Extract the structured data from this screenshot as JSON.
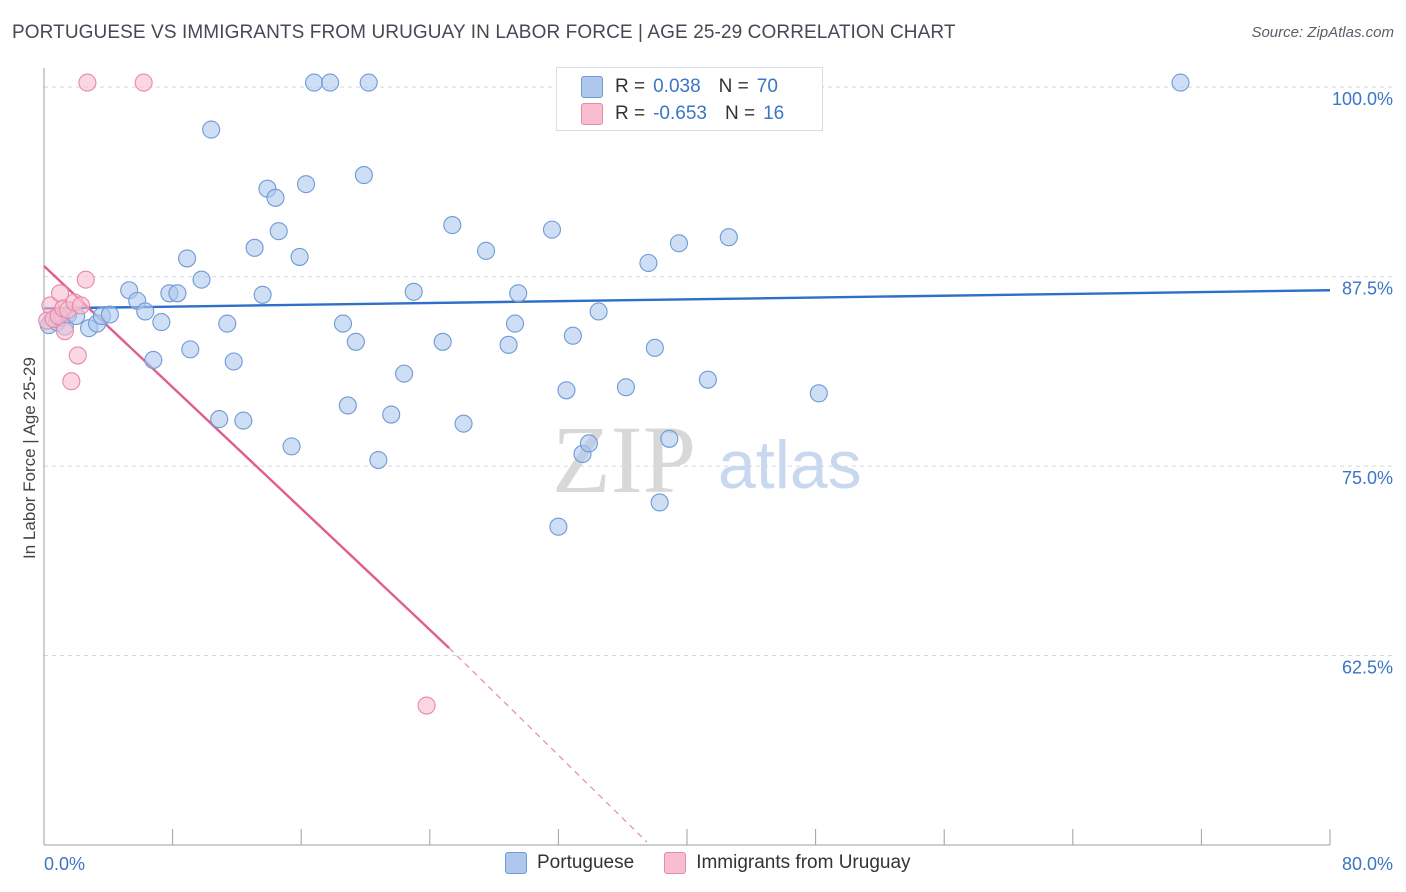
{
  "title": "PORTUGUESE VS IMMIGRANTS FROM URUGUAY IN LABOR FORCE | AGE 25-29 CORRELATION CHART",
  "source": "Source: ZipAtlas.com",
  "watermark": {
    "zip": "ZIP",
    "atlas": "atlas"
  },
  "legend": {
    "rows": [
      {
        "r_label": "R =",
        "r_value": "0.038",
        "n_label": "N =",
        "n_value": "70",
        "color": "#adc8ec",
        "border": "#6f9ad6"
      },
      {
        "r_label": "R =",
        "r_value": "-0.653",
        "n_label": "N =",
        "n_value": "16",
        "color": "#f7bdd0",
        "border": "#e88aa8"
      }
    ]
  },
  "bottom_legend": [
    "Portuguese",
    "Immigrants from Uruguay"
  ],
  "chart_data": {
    "type": "scatter",
    "title": "PORTUGUESE VS IMMIGRANTS FROM URUGUAY IN LABOR FORCE | AGE 25-29 CORRELATION CHART",
    "xlabel": "",
    "ylabel": "In Labor Force | Age 25-29",
    "xlim": [
      0,
      80
    ],
    "ylim": [
      50,
      101
    ],
    "x_tick_labels": [
      "0.0%",
      "80.0%"
    ],
    "y_ticks": [
      62.5,
      75.0,
      87.5,
      100.0
    ],
    "y_tick_labels": [
      "62.5%",
      "75.0%",
      "87.5%",
      "100.0%"
    ],
    "grid": "horizontal dashed",
    "legend_position": "top-center",
    "series": [
      {
        "name": "Portuguese",
        "color": "#6f9ad6",
        "fill": "#adc8ec",
        "trend": {
          "x": [
            0,
            80
          ],
          "y": [
            85.4,
            86.6
          ],
          "color": "#2f6fc8"
        },
        "points": [
          [
            0.3,
            84.3
          ],
          [
            0.8,
            84.5
          ],
          [
            1.0,
            84.8
          ],
          [
            1.3,
            84.2
          ],
          [
            1.5,
            85.0
          ],
          [
            2.0,
            84.9
          ],
          [
            2.8,
            84.1
          ],
          [
            3.3,
            84.4
          ],
          [
            3.6,
            84.9
          ],
          [
            4.1,
            85.0
          ],
          [
            5.3,
            86.6
          ],
          [
            5.8,
            85.9
          ],
          [
            6.3,
            85.2
          ],
          [
            6.8,
            82.0
          ],
          [
            7.3,
            84.5
          ],
          [
            7.8,
            86.4
          ],
          [
            8.3,
            86.4
          ],
          [
            8.9,
            88.7
          ],
          [
            9.1,
            82.7
          ],
          [
            9.8,
            87.3
          ],
          [
            10.4,
            97.2
          ],
          [
            10.9,
            78.1
          ],
          [
            11.4,
            84.4
          ],
          [
            11.8,
            81.9
          ],
          [
            12.4,
            78.0
          ],
          [
            13.1,
            89.4
          ],
          [
            13.6,
            86.3
          ],
          [
            13.9,
            93.3
          ],
          [
            14.4,
            92.7
          ],
          [
            14.6,
            90.5
          ],
          [
            15.4,
            76.3
          ],
          [
            15.9,
            88.8
          ],
          [
            16.3,
            93.6
          ],
          [
            16.8,
            100.3
          ],
          [
            17.8,
            100.3
          ],
          [
            18.6,
            84.4
          ],
          [
            18.9,
            79.0
          ],
          [
            19.4,
            83.2
          ],
          [
            19.9,
            94.2
          ],
          [
            20.2,
            100.3
          ],
          [
            20.8,
            75.4
          ],
          [
            21.6,
            78.4
          ],
          [
            22.4,
            81.1
          ],
          [
            23.0,
            86.5
          ],
          [
            24.8,
            83.2
          ],
          [
            25.4,
            90.9
          ],
          [
            26.1,
            77.8
          ],
          [
            27.5,
            89.2
          ],
          [
            28.9,
            83.0
          ],
          [
            29.3,
            84.4
          ],
          [
            29.5,
            86.4
          ],
          [
            31.6,
            90.6
          ],
          [
            32.0,
            71.0
          ],
          [
            32.5,
            80.0
          ],
          [
            32.9,
            83.6
          ],
          [
            33.5,
            75.8
          ],
          [
            33.9,
            76.5
          ],
          [
            34.5,
            85.2
          ],
          [
            35.4,
            100.2
          ],
          [
            36.2,
            80.2
          ],
          [
            37.6,
            88.4
          ],
          [
            38.0,
            82.8
          ],
          [
            38.3,
            72.6
          ],
          [
            38.9,
            76.8
          ],
          [
            39.5,
            89.7
          ],
          [
            41.3,
            80.7
          ],
          [
            42.6,
            90.1
          ],
          [
            45.8,
            100.3
          ],
          [
            48.2,
            79.8
          ],
          [
            70.7,
            100.3
          ]
        ]
      },
      {
        "name": "Immigrants from Uruguay",
        "color": "#e88aa8",
        "fill": "#f7bdd0",
        "trend": {
          "x": [
            0,
            25.2
          ],
          "y": [
            88.2,
            63.0
          ],
          "color": "#e05d8e"
        },
        "trend_dashed": {
          "x": [
            25.2,
            37.5
          ],
          "y": [
            63.0,
            50.2
          ]
        },
        "points": [
          [
            0.2,
            84.6
          ],
          [
            0.4,
            85.6
          ],
          [
            0.6,
            84.7
          ],
          [
            0.9,
            84.9
          ],
          [
            1.0,
            86.4
          ],
          [
            1.2,
            85.4
          ],
          [
            1.3,
            83.9
          ],
          [
            1.5,
            85.3
          ],
          [
            1.7,
            80.6
          ],
          [
            1.9,
            85.8
          ],
          [
            2.1,
            82.3
          ],
          [
            2.3,
            85.6
          ],
          [
            2.6,
            87.3
          ],
          [
            2.7,
            100.3
          ],
          [
            6.2,
            100.3
          ],
          [
            23.8,
            59.2
          ]
        ]
      }
    ]
  }
}
